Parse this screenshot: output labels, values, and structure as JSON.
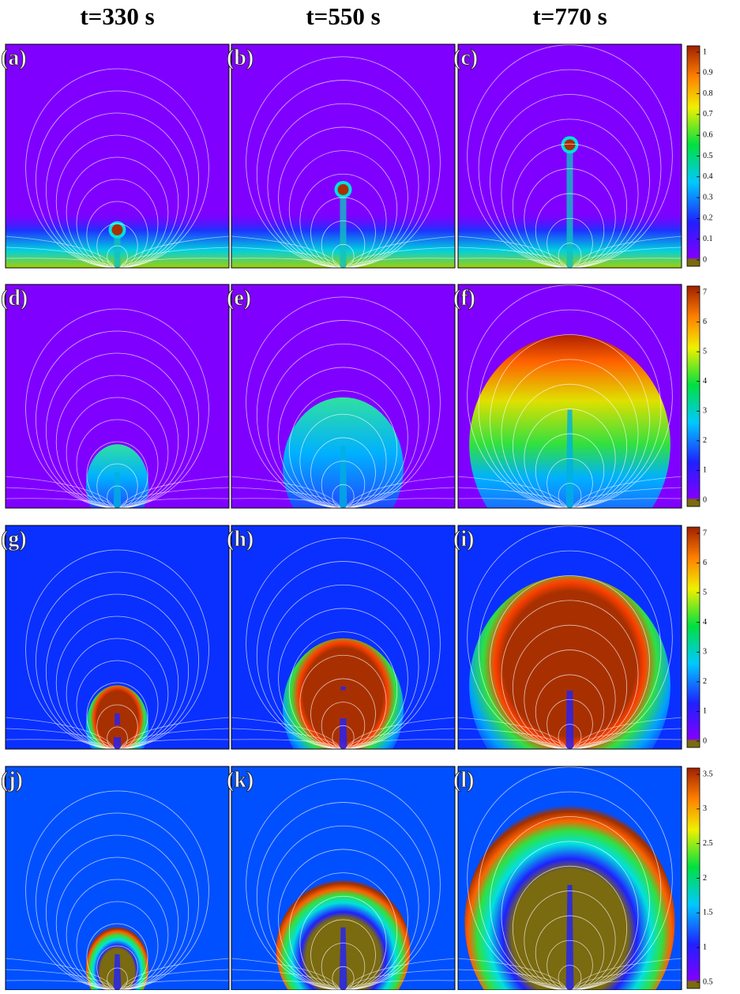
{
  "columns": [
    "t=330 s",
    "t=550 s",
    "t=770 s"
  ],
  "panel_labels": [
    "(a)",
    "(b)",
    "(c)",
    "(d)",
    "(e)",
    "(f)",
    "(g)",
    "(h)",
    "(i)",
    "(j)",
    "(k)",
    "(l)"
  ],
  "colorbars": [
    {
      "ticks": [
        0,
        0.1,
        0.2,
        0.3,
        0.4,
        0.5,
        0.6,
        0.7,
        0.8,
        0.9,
        1
      ]
    },
    {
      "ticks": [
        0,
        1,
        2,
        3,
        4,
        5,
        6,
        7
      ]
    },
    {
      "ticks": [
        0,
        1,
        2,
        3,
        4,
        5,
        6,
        7
      ]
    },
    {
      "ticks": [
        0.5,
        1,
        1.5,
        2,
        2.5,
        3,
        3.5
      ]
    }
  ]
}
